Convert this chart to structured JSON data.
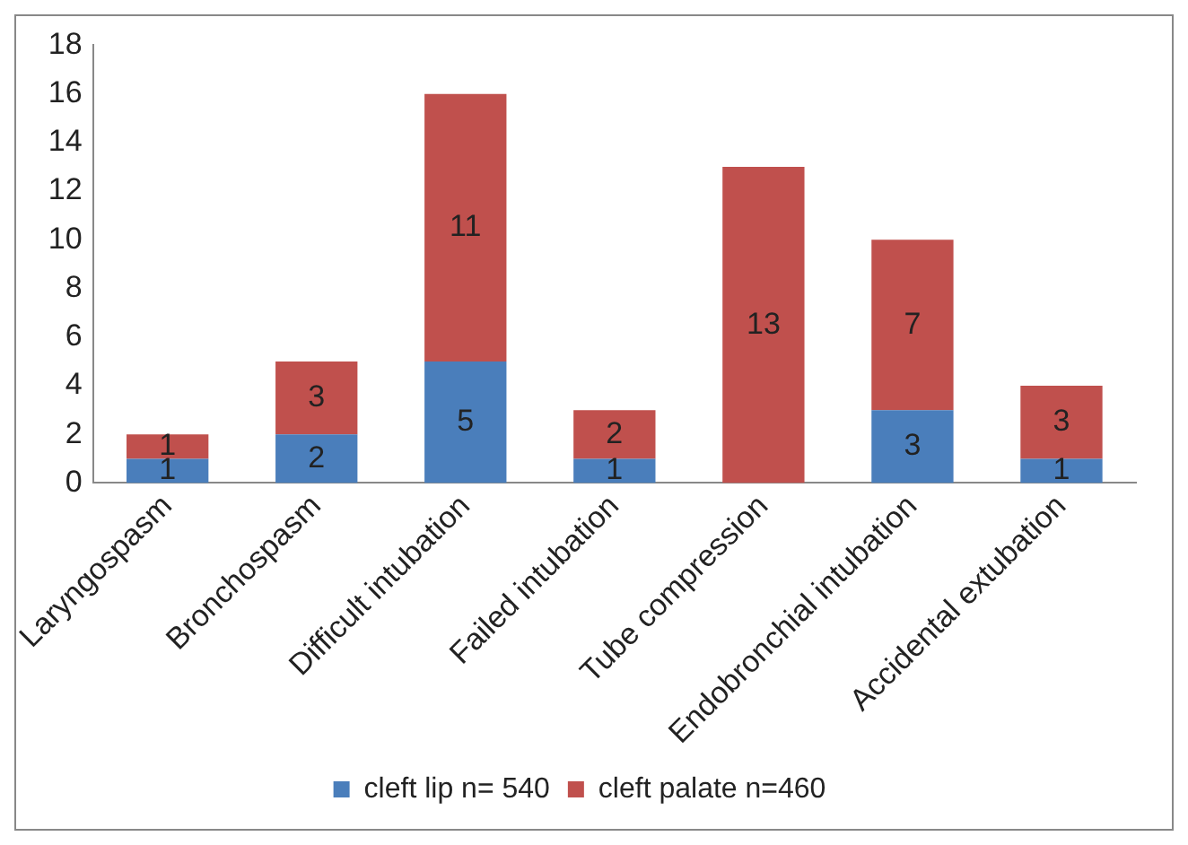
{
  "chart_data": {
    "type": "bar",
    "stacked": true,
    "categories": [
      "Laryngospasm",
      "Bronchospasm",
      "Difficult intubation",
      "Failed intubation",
      "Tube compression",
      "Endobronchial intubation",
      "Accidental extubation"
    ],
    "series": [
      {
        "name": "cleft lip n= 540",
        "color": "#4a7ebb",
        "values": [
          1,
          2,
          5,
          1,
          0,
          3,
          1
        ],
        "value_labels": [
          "1",
          "2",
          "5",
          "1",
          null,
          "3",
          "1"
        ]
      },
      {
        "name": "cleft palate n=460",
        "color": "#c0504d",
        "values": [
          1,
          3,
          11,
          2,
          13,
          7,
          3
        ],
        "value_labels": [
          "1",
          "3",
          "11",
          "2",
          "13",
          "7",
          "3"
        ]
      }
    ],
    "ylim": [
      0,
      18
    ],
    "yticks": [
      0,
      2,
      4,
      6,
      8,
      10,
      12,
      14,
      16,
      18
    ],
    "grid": false,
    "legend": "bottom"
  }
}
